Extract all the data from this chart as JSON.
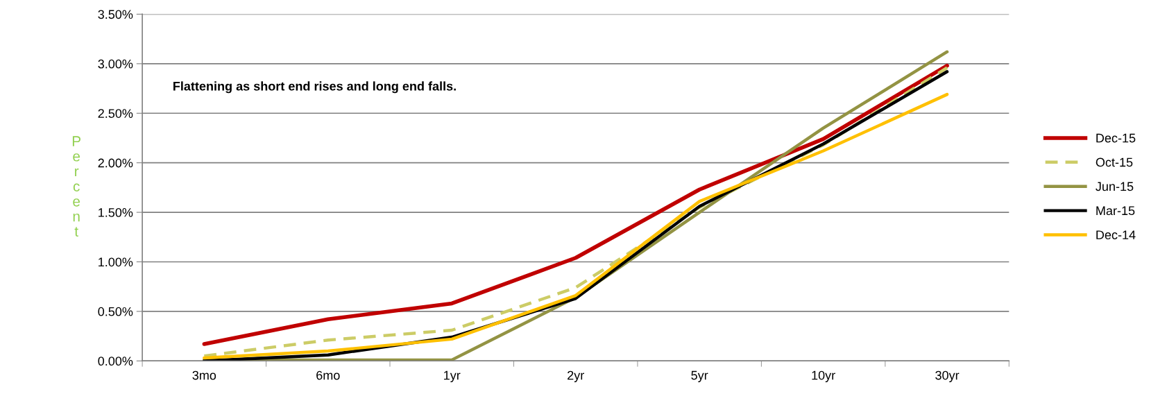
{
  "chart_data": {
    "type": "line",
    "ylabel": "Percent",
    "categories": [
      "3mo",
      "6mo",
      "1yr",
      "2yr",
      "5yr",
      "10yr",
      "30yr"
    ],
    "series": [
      {
        "name": "Dec-15",
        "color": "#c00000",
        "values": [
          0.17,
          0.42,
          0.58,
          1.04,
          1.73,
          2.24,
          2.98
        ]
      },
      {
        "name": "Oct-15",
        "color": "#cccc66",
        "line_style": "dashed",
        "values": [
          0.05,
          0.21,
          0.31,
          0.74,
          1.55,
          2.18,
          2.96
        ]
      },
      {
        "name": "Jun-15",
        "color": "#939343",
        "values": [
          0.01,
          0.01,
          0.01,
          0.64,
          1.5,
          2.35,
          3.12
        ]
      },
      {
        "name": "Mar-15",
        "color": "#000000",
        "values": [
          0.0,
          0.06,
          0.24,
          0.63,
          1.56,
          2.19,
          2.92
        ]
      },
      {
        "name": "Dec-14",
        "color": "#ffc000",
        "values": [
          0.03,
          0.1,
          0.22,
          0.66,
          1.61,
          2.12,
          2.69
        ]
      }
    ],
    "ylim": [
      0,
      3.5
    ],
    "yticks": [
      {
        "value": 0,
        "label": "0.00%"
      },
      {
        "value": 0.5,
        "label": "0.50%"
      },
      {
        "value": 1,
        "label": "1.00%"
      },
      {
        "value": 1.5,
        "label": "1.50%"
      },
      {
        "value": 2,
        "label": "2.00%"
      },
      {
        "value": 2.5,
        "label": "2.50%"
      },
      {
        "value": 3,
        "label": "3.00%"
      },
      {
        "value": 3.5,
        "label": "3.50%"
      }
    ],
    "grid": "y",
    "legend": "right",
    "marker": "none",
    "line_style": "solid",
    "annotations": [
      "Flattening as short end rises and long end falls."
    ]
  }
}
